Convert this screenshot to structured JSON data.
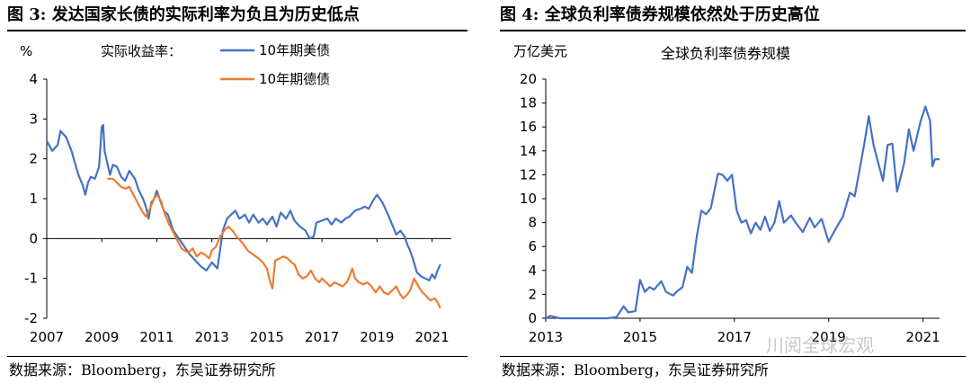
{
  "figures": [
    {
      "title": "图 3:   发达国家长债的实际利率为负且为历史低点",
      "source": "数据来源：Bloomberg，东吴证券研究所"
    },
    {
      "title": "图 4:   全球负利率债券规模依然处于历史高位",
      "source": "数据来源：Bloomberg，东吴证券研究所"
    }
  ],
  "watermark": "川阅全球宏观",
  "chart_data": [
    {
      "type": "line",
      "ylabel": "%",
      "legend_title": "实际收益率：",
      "ylim": [
        -2,
        4
      ],
      "yticks": [
        -2,
        -1,
        0,
        1,
        2,
        3,
        4
      ],
      "xlim": [
        2007,
        2021.7
      ],
      "xticks": [
        "2007",
        "2009",
        "2011",
        "2013",
        "2015",
        "2017",
        "2019",
        "2021"
      ],
      "grid": false,
      "legend_position": "top",
      "series": [
        {
          "name": "10年期美债",
          "color": "#4472c4",
          "points": [
            [
              2007.0,
              2.45
            ],
            [
              2007.2,
              2.2
            ],
            [
              2007.4,
              2.35
            ],
            [
              2007.5,
              2.7
            ],
            [
              2007.7,
              2.55
            ],
            [
              2007.9,
              2.2
            ],
            [
              2008.0,
              1.95
            ],
            [
              2008.15,
              1.6
            ],
            [
              2008.3,
              1.35
            ],
            [
              2008.4,
              1.1
            ],
            [
              2008.5,
              1.4
            ],
            [
              2008.6,
              1.55
            ],
            [
              2008.75,
              1.5
            ],
            [
              2008.9,
              1.8
            ],
            [
              2009.0,
              2.8
            ],
            [
              2009.05,
              2.85
            ],
            [
              2009.1,
              2.2
            ],
            [
              2009.2,
              1.9
            ],
            [
              2009.3,
              1.6
            ],
            [
              2009.4,
              1.85
            ],
            [
              2009.55,
              1.8
            ],
            [
              2009.7,
              1.55
            ],
            [
              2009.85,
              1.45
            ],
            [
              2010.0,
              1.7
            ],
            [
              2010.2,
              1.5
            ],
            [
              2010.35,
              1.2
            ],
            [
              2010.5,
              1.0
            ],
            [
              2010.6,
              0.8
            ],
            [
              2010.7,
              0.5
            ],
            [
              2010.8,
              0.9
            ],
            [
              2010.9,
              1.0
            ],
            [
              2011.0,
              1.2
            ],
            [
              2011.1,
              1.0
            ],
            [
              2011.25,
              0.7
            ],
            [
              2011.4,
              0.6
            ],
            [
              2011.6,
              0.2
            ],
            [
              2011.8,
              0.0
            ],
            [
              2012.0,
              -0.2
            ],
            [
              2012.2,
              -0.4
            ],
            [
              2012.4,
              -0.55
            ],
            [
              2012.6,
              -0.7
            ],
            [
              2012.8,
              -0.8
            ],
            [
              2013.0,
              -0.6
            ],
            [
              2013.2,
              -0.75
            ],
            [
              2013.4,
              0.2
            ],
            [
              2013.55,
              0.5
            ],
            [
              2013.7,
              0.6
            ],
            [
              2013.85,
              0.7
            ],
            [
              2014.0,
              0.5
            ],
            [
              2014.2,
              0.6
            ],
            [
              2014.35,
              0.4
            ],
            [
              2014.5,
              0.6
            ],
            [
              2014.7,
              0.4
            ],
            [
              2014.85,
              0.5
            ],
            [
              2015.0,
              0.35
            ],
            [
              2015.2,
              0.55
            ],
            [
              2015.35,
              0.3
            ],
            [
              2015.5,
              0.65
            ],
            [
              2015.7,
              0.5
            ],
            [
              2015.85,
              0.7
            ],
            [
              2016.0,
              0.45
            ],
            [
              2016.2,
              0.3
            ],
            [
              2016.4,
              0.2
            ],
            [
              2016.55,
              0.0
            ],
            [
              2016.7,
              0.05
            ],
            [
              2016.8,
              0.4
            ],
            [
              2017.0,
              0.45
            ],
            [
              2017.2,
              0.5
            ],
            [
              2017.35,
              0.35
            ],
            [
              2017.5,
              0.5
            ],
            [
              2017.7,
              0.4
            ],
            [
              2017.85,
              0.5
            ],
            [
              2018.0,
              0.55
            ],
            [
              2018.2,
              0.7
            ],
            [
              2018.4,
              0.75
            ],
            [
              2018.55,
              0.8
            ],
            [
              2018.7,
              0.75
            ],
            [
              2018.85,
              0.95
            ],
            [
              2019.0,
              1.1
            ],
            [
              2019.2,
              0.9
            ],
            [
              2019.4,
              0.6
            ],
            [
              2019.55,
              0.35
            ],
            [
              2019.7,
              0.1
            ],
            [
              2019.85,
              0.2
            ],
            [
              2020.0,
              0.05
            ],
            [
              2020.1,
              -0.15
            ],
            [
              2020.2,
              -0.3
            ],
            [
              2020.3,
              -0.5
            ],
            [
              2020.45,
              -0.85
            ],
            [
              2020.6,
              -0.95
            ],
            [
              2020.75,
              -1.0
            ],
            [
              2020.9,
              -1.05
            ],
            [
              2021.0,
              -0.9
            ],
            [
              2021.1,
              -1.0
            ],
            [
              2021.2,
              -0.8
            ],
            [
              2021.3,
              -0.65
            ]
          ]
        },
        {
          "name": "10年期德债",
          "color": "#ed7d31",
          "points": [
            [
              2009.2,
              1.5
            ],
            [
              2009.4,
              1.5
            ],
            [
              2009.55,
              1.4
            ],
            [
              2009.7,
              1.3
            ],
            [
              2009.85,
              1.25
            ],
            [
              2010.0,
              1.3
            ],
            [
              2010.15,
              1.1
            ],
            [
              2010.3,
              0.9
            ],
            [
              2010.45,
              0.7
            ],
            [
              2010.6,
              0.55
            ],
            [
              2010.75,
              0.75
            ],
            [
              2010.9,
              1.0
            ],
            [
              2011.0,
              1.1
            ],
            [
              2011.15,
              0.95
            ],
            [
              2011.3,
              0.6
            ],
            [
              2011.45,
              0.35
            ],
            [
              2011.6,
              0.15
            ],
            [
              2011.75,
              -0.05
            ],
            [
              2011.9,
              -0.25
            ],
            [
              2012.0,
              -0.3
            ],
            [
              2012.15,
              -0.35
            ],
            [
              2012.3,
              -0.25
            ],
            [
              2012.45,
              -0.45
            ],
            [
              2012.6,
              -0.35
            ],
            [
              2012.75,
              -0.4
            ],
            [
              2012.9,
              -0.5
            ],
            [
              2013.0,
              -0.3
            ],
            [
              2013.15,
              -0.2
            ],
            [
              2013.3,
              0.05
            ],
            [
              2013.45,
              0.2
            ],
            [
              2013.6,
              0.3
            ],
            [
              2013.75,
              0.2
            ],
            [
              2013.9,
              0.05
            ],
            [
              2014.1,
              -0.1
            ],
            [
              2014.3,
              -0.3
            ],
            [
              2014.5,
              -0.4
            ],
            [
              2014.7,
              -0.5
            ],
            [
              2014.85,
              -0.6
            ],
            [
              2015.0,
              -0.75
            ],
            [
              2015.1,
              -1.05
            ],
            [
              2015.2,
              -1.25
            ],
            [
              2015.3,
              -0.55
            ],
            [
              2015.45,
              -0.5
            ],
            [
              2015.6,
              -0.45
            ],
            [
              2015.75,
              -0.5
            ],
            [
              2015.9,
              -0.6
            ],
            [
              2016.0,
              -0.65
            ],
            [
              2016.15,
              -0.9
            ],
            [
              2016.3,
              -1.0
            ],
            [
              2016.45,
              -0.95
            ],
            [
              2016.6,
              -0.8
            ],
            [
              2016.75,
              -1.0
            ],
            [
              2016.9,
              -1.1
            ],
            [
              2017.0,
              -1.0
            ],
            [
              2017.15,
              -1.1
            ],
            [
              2017.3,
              -1.2
            ],
            [
              2017.45,
              -1.1
            ],
            [
              2017.6,
              -1.15
            ],
            [
              2017.75,
              -1.2
            ],
            [
              2017.9,
              -1.1
            ],
            [
              2018.0,
              -0.95
            ],
            [
              2018.1,
              -0.75
            ],
            [
              2018.2,
              -1.0
            ],
            [
              2018.35,
              -1.1
            ],
            [
              2018.5,
              -1.15
            ],
            [
              2018.65,
              -1.1
            ],
            [
              2018.8,
              -1.2
            ],
            [
              2018.95,
              -1.35
            ],
            [
              2019.1,
              -1.2
            ],
            [
              2019.25,
              -1.35
            ],
            [
              2019.4,
              -1.4
            ],
            [
              2019.55,
              -1.3
            ],
            [
              2019.7,
              -1.2
            ],
            [
              2019.8,
              -1.35
            ],
            [
              2019.95,
              -1.5
            ],
            [
              2020.1,
              -1.4
            ],
            [
              2020.2,
              -1.3
            ],
            [
              2020.35,
              -1.0
            ],
            [
              2020.5,
              -1.2
            ],
            [
              2020.65,
              -1.35
            ],
            [
              2020.8,
              -1.45
            ],
            [
              2020.95,
              -1.55
            ],
            [
              2021.1,
              -1.5
            ],
            [
              2021.2,
              -1.6
            ],
            [
              2021.3,
              -1.75
            ]
          ]
        }
      ]
    },
    {
      "type": "line",
      "title": "全球负利率债券规模",
      "ylabel": "万亿美元",
      "ylim": [
        0,
        20
      ],
      "yticks": [
        0,
        2,
        4,
        6,
        8,
        10,
        12,
        14,
        16,
        18,
        20
      ],
      "xlim": [
        2013,
        2021.35
      ],
      "xticks": [
        "2013",
        "2015",
        "2017",
        "2019",
        "2021"
      ],
      "grid": false,
      "series": [
        {
          "color": "#4472c4",
          "points": [
            [
              2013.0,
              0.0
            ],
            [
              2013.1,
              0.2
            ],
            [
              2013.2,
              0.1
            ],
            [
              2013.3,
              0.0
            ],
            [
              2014.0,
              0.0
            ],
            [
              2014.3,
              0.0
            ],
            [
              2014.5,
              0.1
            ],
            [
              2014.65,
              1.0
            ],
            [
              2014.75,
              0.5
            ],
            [
              2014.9,
              0.6
            ],
            [
              2015.0,
              3.2
            ],
            [
              2015.1,
              2.2
            ],
            [
              2015.2,
              2.6
            ],
            [
              2015.3,
              2.4
            ],
            [
              2015.45,
              3.1
            ],
            [
              2015.55,
              2.2
            ],
            [
              2015.7,
              1.9
            ],
            [
              2015.8,
              2.3
            ],
            [
              2015.9,
              2.6
            ],
            [
              2016.0,
              4.3
            ],
            [
              2016.1,
              3.8
            ],
            [
              2016.2,
              6.8
            ],
            [
              2016.3,
              9.0
            ],
            [
              2016.4,
              8.7
            ],
            [
              2016.5,
              9.2
            ],
            [
              2016.65,
              12.1
            ],
            [
              2016.75,
              12.0
            ],
            [
              2016.85,
              11.5
            ],
            [
              2016.95,
              12.0
            ],
            [
              2017.05,
              9.0
            ],
            [
              2017.15,
              8.0
            ],
            [
              2017.25,
              8.2
            ],
            [
              2017.35,
              7.1
            ],
            [
              2017.45,
              8.0
            ],
            [
              2017.55,
              7.4
            ],
            [
              2017.65,
              8.5
            ],
            [
              2017.75,
              7.3
            ],
            [
              2017.85,
              8.0
            ],
            [
              2017.95,
              9.8
            ],
            [
              2018.05,
              8.0
            ],
            [
              2018.2,
              8.6
            ],
            [
              2018.3,
              8.0
            ],
            [
              2018.45,
              7.2
            ],
            [
              2018.6,
              8.4
            ],
            [
              2018.7,
              7.6
            ],
            [
              2018.85,
              8.3
            ],
            [
              2019.0,
              6.4
            ],
            [
              2019.15,
              7.5
            ],
            [
              2019.3,
              8.5
            ],
            [
              2019.45,
              10.5
            ],
            [
              2019.55,
              10.2
            ],
            [
              2019.65,
              12.3
            ],
            [
              2019.75,
              14.5
            ],
            [
              2019.85,
              16.9
            ],
            [
              2019.95,
              14.5
            ],
            [
              2020.05,
              13.0
            ],
            [
              2020.15,
              11.5
            ],
            [
              2020.25,
              14.5
            ],
            [
              2020.35,
              14.6
            ],
            [
              2020.45,
              10.6
            ],
            [
              2020.6,
              13.0
            ],
            [
              2020.7,
              15.8
            ],
            [
              2020.8,
              14.0
            ],
            [
              2020.95,
              16.5
            ],
            [
              2021.05,
              17.7
            ],
            [
              2021.15,
              16.5
            ],
            [
              2021.2,
              12.7
            ],
            [
              2021.25,
              13.3
            ],
            [
              2021.35,
              13.3
            ]
          ]
        }
      ]
    }
  ]
}
